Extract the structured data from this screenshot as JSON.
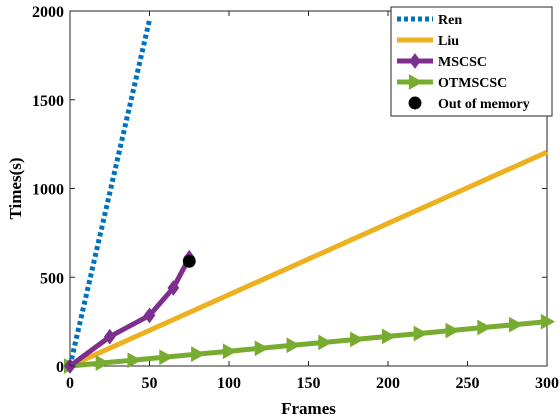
{
  "chart_data": {
    "type": "line",
    "xlabel": "Frames",
    "ylabel": "Times(s)",
    "xlim": [
      0,
      300
    ],
    "ylim": [
      0,
      2000
    ],
    "xticks": [
      0,
      50,
      100,
      150,
      200,
      250,
      300
    ],
    "yticks": [
      0,
      500,
      1000,
      1500,
      2000
    ],
    "legend_position": "top-right",
    "series": [
      {
        "name": "Ren",
        "color": "#0072BD",
        "style": "dotted",
        "marker": "none",
        "x": [
          0,
          50
        ],
        "y": [
          0,
          1950
        ]
      },
      {
        "name": "Liu",
        "color": "#EDB120",
        "style": "solid",
        "marker": "none",
        "x": [
          0,
          300
        ],
        "y": [
          0,
          1205
        ]
      },
      {
        "name": "MSCSC",
        "color": "#7E2F8E",
        "style": "solid",
        "marker": "diamond",
        "x": [
          0,
          25,
          50,
          65,
          75
        ],
        "y": [
          0,
          165,
          285,
          440,
          610
        ]
      },
      {
        "name": "OTMSCSC",
        "color": "#77AC30",
        "style": "solid",
        "marker": "triangle-right",
        "x": [
          0,
          20,
          40,
          60,
          80,
          100,
          120,
          140,
          160,
          180,
          200,
          220,
          240,
          260,
          280,
          300
        ],
        "y": [
          0,
          17,
          33,
          50,
          67,
          83,
          100,
          117,
          133,
          150,
          167,
          183,
          200,
          217,
          233,
          250
        ]
      },
      {
        "name": "Out of memory",
        "color": "#000000",
        "style": "none",
        "marker": "circle",
        "x": [
          75
        ],
        "y": [
          590
        ]
      }
    ]
  }
}
